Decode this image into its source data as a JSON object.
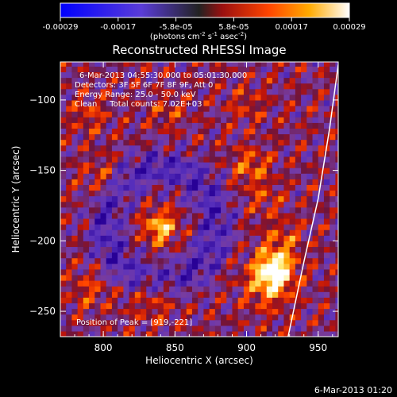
{
  "chart_data": {
    "type": "heatmap",
    "title": "Reconstructed RHESSI Image",
    "xlabel": "Heliocentric X (arcsec)",
    "ylabel": "Heliocentric Y (arcsec)",
    "xlim": [
      770,
      964
    ],
    "ylim": [
      -268,
      -73
    ],
    "x_ticks": [
      800,
      850,
      900,
      950
    ],
    "y_ticks": [
      -100,
      -150,
      -200,
      -250
    ],
    "colorbar": {
      "tick_labels": [
        "-0.00029",
        "-0.00017",
        "-5.8e-05",
        "5.8e-05",
        "0.00017",
        "0.00029"
      ],
      "label_main": "(photons cm",
      "label_sup1": "-2",
      "label_mid1": " s",
      "label_sup2": "-1",
      "label_mid2": " asec",
      "label_sup3": "-2",
      "label_end": ")"
    },
    "annotations": [
      "6-Mar-2013 04:55:30.000 to 05:01:30.000",
      "Detectors: 3F 5F 6F 7F 8F 9F, Att 0",
      "Energy Range: 25.0 - 50.0 keV",
      "Clean     Total counts: 7.02E+03"
    ],
    "peak_label": "Position of Peak = [919,-221]",
    "peak": [
      919,
      -221
    ],
    "limb_points": [
      [
        964,
        -75
      ],
      [
        958,
        -120
      ],
      [
        950,
        -170
      ],
      [
        940,
        -215
      ],
      [
        929,
        -268
      ]
    ]
  },
  "footer_timestamp": "6-Mar-2013 01:20"
}
